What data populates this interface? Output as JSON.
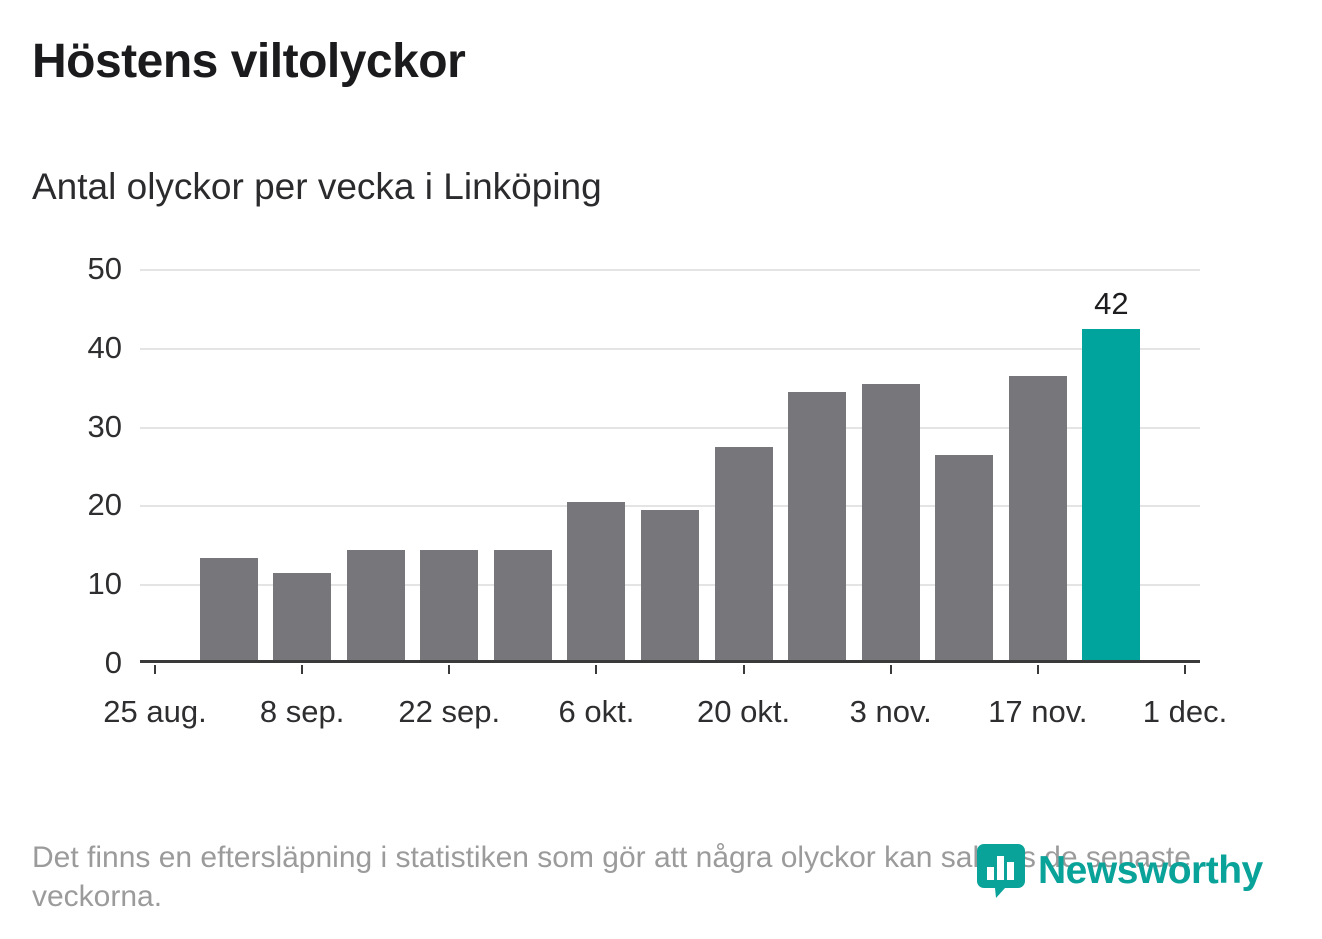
{
  "title": "Höstens viltolyckor",
  "subtitle": "Antal olyckor per vecka i Linköping",
  "footnote": "Det finns en eftersläpning i statistiken som gör att några olyckor kan saknas de senaste veckorna.",
  "branding": {
    "name": "Newsworthy",
    "icon": "newsworthy-logo-icon",
    "color": "#0aa39a"
  },
  "colors": {
    "bar": "#77777b",
    "highlight": "#00a49c",
    "grid": "#e4e4e4",
    "axis": "#3a3a3a",
    "muted_text": "#9b9b9b"
  },
  "chart_data": {
    "type": "bar",
    "title": "Höstens viltolyckor",
    "subtitle": "Antal olyckor per vecka i Linköping",
    "xlabel": "",
    "ylabel": "Antal olyckor per vecka",
    "ylim": [
      0,
      50
    ],
    "yticks": [
      0,
      10,
      20,
      30,
      40,
      50
    ],
    "grid": true,
    "legend": false,
    "weeks_total": 14,
    "x_ticks": [
      {
        "week": 0,
        "label": "25 aug."
      },
      {
        "week": 2,
        "label": "8 sep."
      },
      {
        "week": 4,
        "label": "22 sep."
      },
      {
        "week": 6,
        "label": "6 okt."
      },
      {
        "week": 8,
        "label": "20 okt."
      },
      {
        "week": 10,
        "label": "3 nov."
      },
      {
        "week": 12,
        "label": "17 nov."
      },
      {
        "week": 14,
        "label": "1 dec."
      }
    ],
    "bars": [
      {
        "week": 1,
        "value": 13
      },
      {
        "week": 2,
        "value": 11
      },
      {
        "week": 3,
        "value": 14
      },
      {
        "week": 4,
        "value": 14
      },
      {
        "week": 5,
        "value": 14
      },
      {
        "week": 6,
        "value": 20
      },
      {
        "week": 7,
        "value": 19
      },
      {
        "week": 8,
        "value": 27
      },
      {
        "week": 9,
        "value": 34
      },
      {
        "week": 10,
        "value": 35
      },
      {
        "week": 11,
        "value": 26
      },
      {
        "week": 12,
        "value": 36
      },
      {
        "week": 13,
        "value": 42,
        "highlight": true,
        "label": "42"
      }
    ]
  }
}
